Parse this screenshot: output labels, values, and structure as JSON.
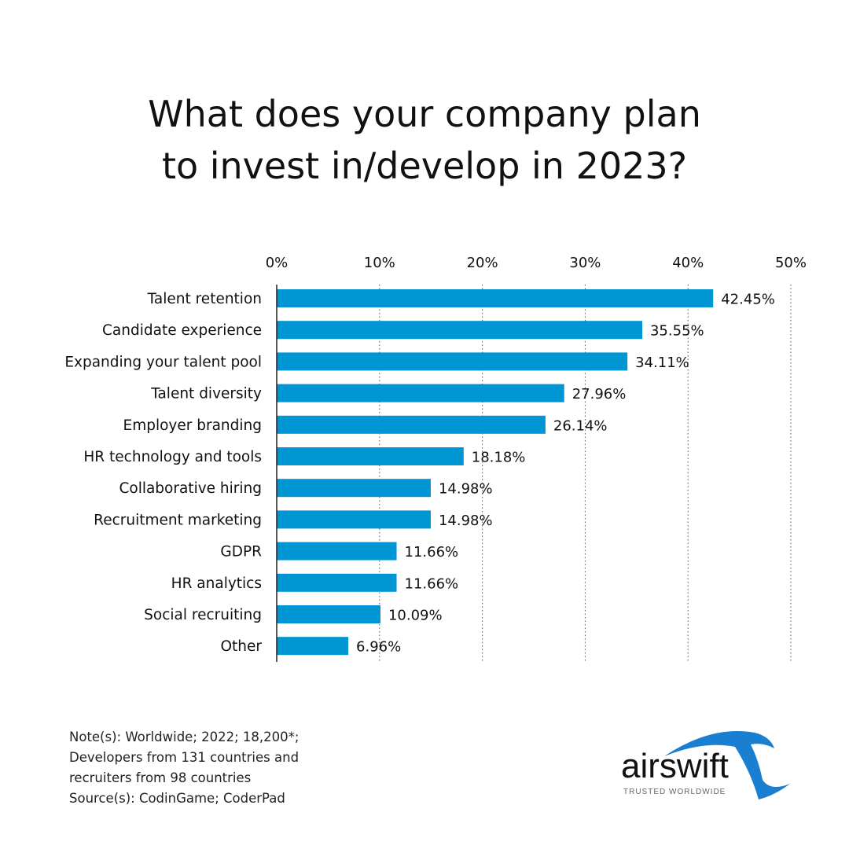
{
  "chart_data": {
    "type": "bar",
    "orientation": "horizontal",
    "title": "What does your company plan to invest in/develop in 2023?",
    "title_lines": [
      "What does your company plan",
      "to invest in/develop in 2023?"
    ],
    "categories": [
      "Talent retention",
      "Candidate experience",
      "Expanding your talent pool",
      "Talent diversity",
      "Employer branding",
      "HR technology and tools",
      "Collaborative hiring",
      "Recruitment marketing",
      "GDPR",
      "HR analytics",
      "Social recruiting",
      "Other"
    ],
    "values": [
      42.45,
      35.55,
      34.11,
      27.96,
      26.14,
      18.18,
      14.98,
      14.98,
      11.66,
      11.66,
      10.09,
      6.96
    ],
    "data_labels": [
      "42.45%",
      "35.55%",
      "34.11%",
      "27.96%",
      "26.14%",
      "18.18%",
      "14.98%",
      "14.98%",
      "11.66%",
      "11.66%",
      "10.09%",
      "6.96%"
    ],
    "xlim": [
      0,
      50
    ],
    "x_ticks": [
      0,
      10,
      20,
      30,
      40,
      50
    ],
    "x_tick_labels": [
      "0%",
      "10%",
      "20%",
      "30%",
      "40%",
      "50%"
    ],
    "x_axis_position": "top",
    "grid": "vertical dotted",
    "bar_color": "#0095d3"
  },
  "notes": [
    "Note(s): Worldwide; 2022; 18,200*;",
    "Developers from 131 countries and",
    "recruiters from 98 countries",
    "Source(s): CodinGame; CoderPad"
  ],
  "logo": {
    "name": "airswift",
    "tagline": "TRUSTED WORLDWIDE"
  }
}
